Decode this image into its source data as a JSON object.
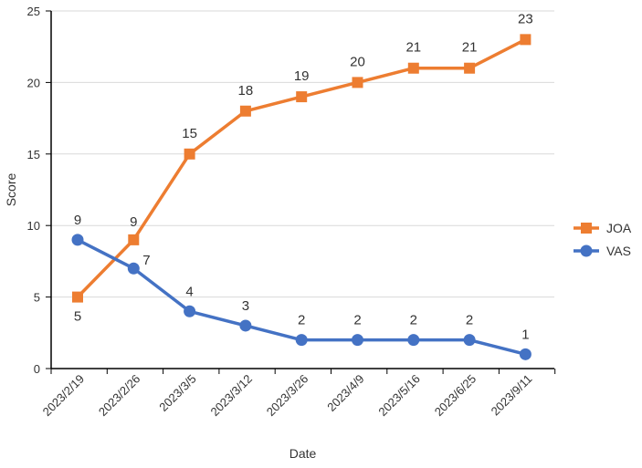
{
  "chart_data": {
    "type": "line",
    "title": "",
    "xlabel": "Date",
    "ylabel": "Score",
    "ylim": [
      0,
      25
    ],
    "yticks": [
      0,
      5,
      10,
      15,
      20,
      25
    ],
    "grid": true,
    "legend_position": "right",
    "categories": [
      "2023/2/19",
      "2023/2/26",
      "2023/3/5",
      "2023/3/12",
      "2023/3/26",
      "2023/4/9",
      "2023/5/16",
      "2023/6/25",
      "2023/9/11"
    ],
    "series": [
      {
        "name": "JOA",
        "marker": "square",
        "color": "#ED7D31",
        "values": [
          5,
          9,
          15,
          18,
          19,
          20,
          21,
          21,
          23
        ]
      },
      {
        "name": "VAS",
        "marker": "circle",
        "color": "#4472C4",
        "values": [
          9,
          7,
          4,
          3,
          2,
          2,
          2,
          2,
          1
        ]
      }
    ]
  }
}
